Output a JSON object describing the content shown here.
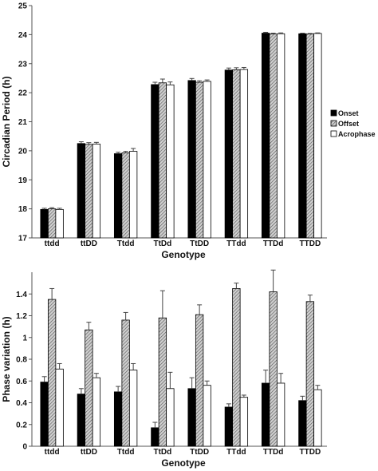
{
  "chart_data": [
    {
      "type": "bar",
      "xlabel": "Genotype",
      "ylabel": "Circadian Period (h)",
      "ylim": [
        17,
        25
      ],
      "yticks": [
        17,
        18,
        19,
        20,
        21,
        22,
        23,
        24,
        25
      ],
      "categories": [
        "ttdd",
        "ttDD",
        "Ttdd",
        "TtDd",
        "TtDD",
        "TTdd",
        "TTDd",
        "TTDD"
      ],
      "series": [
        {
          "name": "Onset",
          "fill": "#000000",
          "values": [
            17.98,
            20.25,
            19.9,
            22.28,
            22.42,
            22.78,
            24.05,
            24.03
          ],
          "errors": [
            0.04,
            0.06,
            0.05,
            0.08,
            0.07,
            0.07,
            0.03,
            0.02
          ]
        },
        {
          "name": "Offset",
          "fill": "hatch",
          "values": [
            18.0,
            20.22,
            19.93,
            22.34,
            22.36,
            22.79,
            24.02,
            24.02
          ],
          "errors": [
            0.04,
            0.06,
            0.05,
            0.13,
            0.05,
            0.07,
            0.03,
            0.02
          ]
        },
        {
          "name": "Acrophase",
          "fill": "#ffffff",
          "values": [
            17.98,
            20.23,
            19.98,
            22.27,
            22.39,
            22.8,
            24.03,
            24.04
          ],
          "errors": [
            0.04,
            0.06,
            0.1,
            0.1,
            0.05,
            0.07,
            0.03,
            0.02
          ]
        }
      ],
      "legend": "right",
      "grid": false
    },
    {
      "type": "bar",
      "xlabel": "Genotype",
      "ylabel": "Phase variation (h)",
      "ylim": [
        0,
        1.6
      ],
      "yticks": [
        0,
        0.2,
        0.4,
        0.6,
        0.8,
        1,
        1.2,
        1.4
      ],
      "categories": [
        "ttdd",
        "ttDD",
        "Ttdd",
        "TtDd",
        "TtDD",
        "TTdd",
        "TTDd",
        "TTDD"
      ],
      "series": [
        {
          "name": "Onset",
          "fill": "#000000",
          "values": [
            0.59,
            0.48,
            0.5,
            0.17,
            0.53,
            0.36,
            0.58,
            0.42
          ],
          "errors": [
            0.05,
            0.05,
            0.05,
            0.05,
            0.1,
            0.03,
            0.12,
            0.04
          ]
        },
        {
          "name": "Offset",
          "fill": "hatch",
          "values": [
            1.35,
            1.07,
            1.16,
            1.18,
            1.21,
            1.45,
            1.42,
            1.33
          ],
          "errors": [
            0.1,
            0.07,
            0.07,
            0.25,
            0.09,
            0.05,
            0.2,
            0.06
          ]
        },
        {
          "name": "Acrophase",
          "fill": "#ffffff",
          "values": [
            0.71,
            0.63,
            0.7,
            0.53,
            0.56,
            0.45,
            0.58,
            0.52
          ],
          "errors": [
            0.05,
            0.04,
            0.06,
            0.15,
            0.04,
            0.02,
            0.09,
            0.04
          ]
        }
      ],
      "grid": false
    }
  ]
}
